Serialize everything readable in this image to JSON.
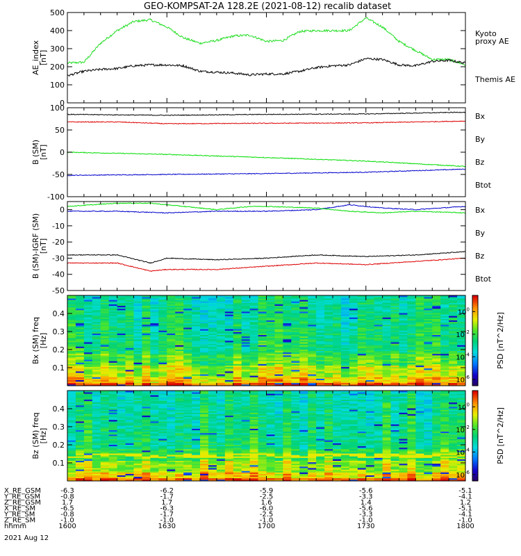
{
  "title": "GEO-KOMPSAT-2A 128.2E (2021-08-12) recalib dataset",
  "colors": {
    "black": "#000000",
    "red": "#dd0000",
    "green": "#00dd00",
    "blue": "#0000cc",
    "kyoto": "#22dd22"
  },
  "chart_data": [
    {
      "type": "line",
      "ylabel": "AE_index [nT]",
      "ylim": [
        0,
        500
      ],
      "yticks": [
        0,
        100,
        200,
        300,
        400,
        500
      ],
      "series": [
        {
          "name": "Kyoto proxy AE",
          "legend_lines": [
            "Kyoto",
            "proxy AE"
          ],
          "color": "#22dd22",
          "x": [
            1600,
            1605,
            1610,
            1615,
            1620,
            1625,
            1630,
            1635,
            1640,
            1645,
            1650,
            1655,
            1700,
            1705,
            1710,
            1715,
            1720,
            1725,
            1730,
            1735,
            1740,
            1745,
            1750,
            1755,
            1800
          ],
          "y": [
            220,
            225,
            330,
            400,
            450,
            460,
            420,
            360,
            330,
            345,
            370,
            375,
            340,
            345,
            395,
            400,
            400,
            400,
            470,
            420,
            340,
            290,
            240,
            240,
            210
          ]
        },
        {
          "name": "Themis AE",
          "legend_lines": [
            "Themis AE"
          ],
          "color": "#000000",
          "x": [
            1600,
            1605,
            1610,
            1615,
            1620,
            1625,
            1630,
            1635,
            1640,
            1645,
            1650,
            1655,
            1700,
            1705,
            1710,
            1715,
            1720,
            1725,
            1730,
            1735,
            1740,
            1745,
            1750,
            1755,
            1800
          ],
          "y": [
            150,
            175,
            185,
            190,
            205,
            210,
            210,
            205,
            175,
            170,
            165,
            155,
            160,
            160,
            175,
            195,
            205,
            210,
            245,
            240,
            210,
            205,
            230,
            235,
            220
          ]
        }
      ]
    },
    {
      "type": "line",
      "ylabel": "B (SM) [nT]",
      "ylim": [
        -100,
        100
      ],
      "yticks": [
        -100,
        -50,
        0,
        50,
        100
      ],
      "series": [
        {
          "name": "Bx",
          "color": "#0000cc",
          "x": [
            1600,
            1630,
            1700,
            1730,
            1800
          ],
          "y": [
            -52,
            -50,
            -48,
            -45,
            -38
          ]
        },
        {
          "name": "By",
          "color": "#00dd00",
          "x": [
            1600,
            1630,
            1700,
            1730,
            1800
          ],
          "y": [
            0,
            -5,
            -12,
            -20,
            -32
          ]
        },
        {
          "name": "Bz",
          "color": "#dd0000",
          "x": [
            1600,
            1615,
            1630,
            1700,
            1730,
            1800
          ],
          "y": [
            68,
            68,
            64,
            65,
            66,
            70
          ]
        },
        {
          "name": "Btot",
          "color": "#000000",
          "x": [
            1600,
            1630,
            1700,
            1730,
            1800
          ],
          "y": [
            85,
            83,
            85,
            86,
            90
          ]
        }
      ]
    },
    {
      "type": "line",
      "ylabel": "B (SM)-IGRF (SM) [nT]",
      "ylim": [
        -50,
        5
      ],
      "yticks": [
        -50,
        -40,
        -30,
        -20,
        -10,
        0
      ],
      "series": [
        {
          "name": "Bx",
          "color": "#0000cc",
          "x": [
            1600,
            1615,
            1630,
            1645,
            1700,
            1715,
            1725,
            1735,
            1745,
            1800
          ],
          "y": [
            -1,
            -1,
            -2,
            -1,
            -1,
            0,
            3,
            1,
            0,
            2
          ]
        },
        {
          "name": "By",
          "color": "#00dd00",
          "x": [
            1600,
            1615,
            1625,
            1635,
            1645,
            1655,
            1700,
            1715,
            1725,
            1735,
            1745,
            1800
          ],
          "y": [
            2,
            4,
            4,
            2,
            0,
            2,
            2,
            1,
            -1,
            -2,
            -1,
            -2
          ]
        },
        {
          "name": "Bz",
          "color": "#dd0000",
          "x": [
            1600,
            1615,
            1625,
            1630,
            1645,
            1700,
            1715,
            1730,
            1745,
            1800
          ],
          "y": [
            -33,
            -33,
            -38,
            -37,
            -37,
            -35,
            -33,
            -34,
            -32,
            -30
          ]
        },
        {
          "name": "Btot",
          "color": "#000000",
          "x": [
            1600,
            1615,
            1625,
            1630,
            1645,
            1700,
            1715,
            1730,
            1745,
            1800
          ],
          "y": [
            -28,
            -28,
            -33,
            -30,
            -31,
            -30,
            -28,
            -29,
            -28,
            -26
          ]
        }
      ]
    },
    {
      "type": "heatmap",
      "ylabel": "Bx (SM) freq [Hz]",
      "ylim": [
        0,
        0.5
      ],
      "yticks": [
        0.1,
        0.2,
        0.3,
        0.4
      ],
      "colorbar_label": "PSD [nT^2/Hz]",
      "colorbar_ticks": [
        "10^0",
        "10^-2",
        "10^-4",
        "10^-6"
      ]
    },
    {
      "type": "heatmap",
      "ylabel": "Bz (SM) freq [Hz]",
      "ylim": [
        0,
        0.5
      ],
      "yticks": [
        0.1,
        0.2,
        0.3,
        0.4
      ],
      "colorbar_label": "PSD [nT^2/Hz]",
      "colorbar_ticks": [
        "10^0",
        "10^-2",
        "10^-4",
        "10^-6"
      ]
    }
  ],
  "xaxis": {
    "ticks": [
      1600,
      1630,
      1700,
      1730,
      1800
    ],
    "rows": [
      {
        "label": "X_RE_GSM",
        "values": [
          "-6.3",
          "-6.2",
          "-5.9",
          "-5.6",
          "-5.1"
        ]
      },
      {
        "label": "Y_RE_GSM",
        "values": [
          "-0.8",
          "-1.7",
          "-2.5",
          "-3.3",
          "-4.1"
        ]
      },
      {
        "label": "Z_RE_GSM",
        "values": [
          "1.7",
          "1.7",
          "1.6",
          "1.4",
          "1.2"
        ]
      },
      {
        "label": "X_RE_SM",
        "values": [
          "-6.5",
          "-6.3",
          "-6.0",
          "-5.6",
          "-5.1"
        ]
      },
      {
        "label": "Y_RE_SM",
        "values": [
          "-0.8",
          "-1.7",
          "-2.5",
          "-3.3",
          "-4.1"
        ]
      },
      {
        "label": "Z_RE_SM",
        "values": [
          "-1.0",
          "-1.0",
          "-1.0",
          "-1.0",
          "-1.0"
        ]
      },
      {
        "label": "hhmm",
        "values": [
          "1600",
          "1630",
          "1700",
          "1730",
          "1800"
        ]
      }
    ],
    "date": "2021 Aug 12"
  }
}
